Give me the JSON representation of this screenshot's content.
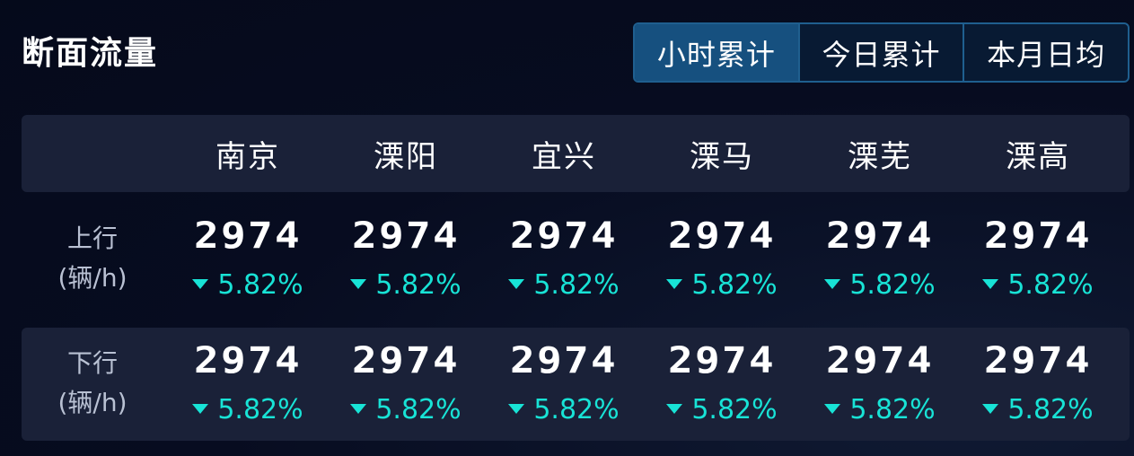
{
  "title": "断面流量",
  "tabs": [
    {
      "label": "小时累计",
      "active": true
    },
    {
      "label": "今日累计",
      "active": false
    },
    {
      "label": "本月日均",
      "active": false
    }
  ],
  "columns": [
    "南京",
    "溧阳",
    "宜兴",
    "溧马",
    "溧芜",
    "溧高"
  ],
  "rows": [
    {
      "label_line1": "上行",
      "label_line2": "(辆/h)",
      "cells": [
        {
          "value": "2974",
          "change": "5.82%"
        },
        {
          "value": "2974",
          "change": "5.82%"
        },
        {
          "value": "2974",
          "change": "5.82%"
        },
        {
          "value": "2974",
          "change": "5.82%"
        },
        {
          "value": "2974",
          "change": "5.82%"
        },
        {
          "value": "2974",
          "change": "5.82%"
        }
      ]
    },
    {
      "label_line1": "下行",
      "label_line2": "(辆/h)",
      "cells": [
        {
          "value": "2974",
          "change": "5.82%"
        },
        {
          "value": "2974",
          "change": "5.82%"
        },
        {
          "value": "2974",
          "change": "5.82%"
        },
        {
          "value": "2974",
          "change": "5.82%"
        },
        {
          "value": "2974",
          "change": "5.82%"
        },
        {
          "value": "2974",
          "change": "5.82%"
        }
      ]
    }
  ],
  "colors": {
    "accent_active_tab": "#16507f",
    "tab_border": "#1f5f8f",
    "change_down": "#18e3d6",
    "row_stripe": "#1a2138"
  },
  "icons": {
    "change_indicator": "triangle-down-icon"
  }
}
